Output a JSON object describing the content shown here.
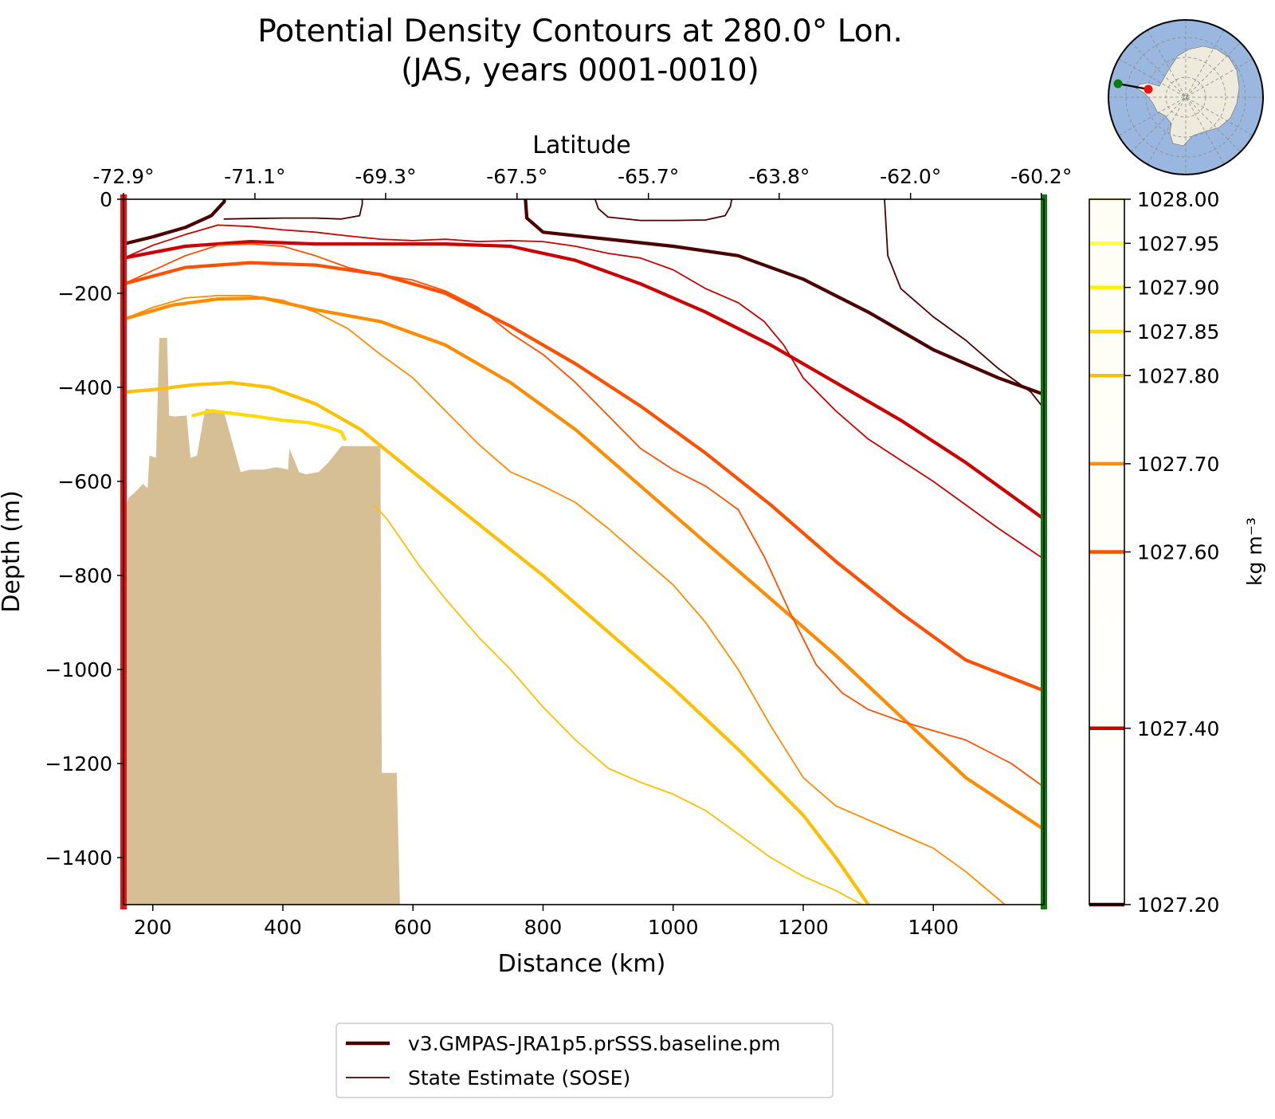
{
  "chart_data": {
    "type": "line",
    "title_line1": "Potential Density Contours at 280.0° Lon.",
    "title_line2": "(JAS, years 0001-0010)",
    "xlabel": "Distance (km)",
    "ylabel": "Depth (m)",
    "top_axis_label": "Latitude",
    "xlim": [
      155,
      1570
    ],
    "ylim": [
      -1500,
      0
    ],
    "x_ticks": [
      200,
      400,
      600,
      800,
      1000,
      1200,
      1400
    ],
    "x_tick_labels": [
      "200",
      "400",
      "600",
      "800",
      "1000",
      "1200",
      "1400"
    ],
    "y_ticks": [
      0,
      -200,
      -400,
      -600,
      -800,
      -1000,
      -1200,
      -1400
    ],
    "y_tick_labels": [
      "0",
      "−200",
      "−400",
      "−600",
      "−800",
      "−1000",
      "−1200",
      "−1400"
    ],
    "lat_ticks": [
      155,
      357,
      558,
      760,
      962,
      1163,
      1365,
      1566
    ],
    "lat_tick_labels": [
      "-72.9°",
      "-71.1°",
      "-69.3°",
      "-67.5°",
      "-65.7°",
      "-63.8°",
      "-62.0°",
      "-60.2°"
    ],
    "colorbar": {
      "label": "kg m⁻³",
      "min": 1027.2,
      "max": 1028.0,
      "levels": [
        1028.0,
        1027.95,
        1027.9,
        1027.85,
        1027.8,
        1027.7,
        1027.6,
        1027.4,
        1027.2
      ],
      "tick_labels": [
        "1028.00",
        "1027.95",
        "1027.90",
        "1027.85",
        "1027.80",
        "1027.70",
        "1027.60",
        "1027.40",
        "1027.20"
      ],
      "colors": [
        "#fffbd1",
        "#ffff33",
        "#fff000",
        "#ffd900",
        "#fcc000",
        "#ff8c00",
        "#ff5000",
        "#cc0000",
        "#4b0000"
      ]
    },
    "legend": {
      "placement": "bottom",
      "entries": [
        "v3.GMPAS-JRA1p5.prSSS.baseline.pm",
        "State Estimate (SOSE)"
      ]
    },
    "section_start_color": "#ee1111",
    "section_end_color": "#0a7a0a",
    "seafloor_color": "#d6bf95",
    "seafloor": {
      "x": [
        160,
        163,
        175,
        185,
        192,
        195,
        205,
        210,
        222,
        225,
        233,
        252,
        258,
        268,
        280,
        282,
        310,
        335,
        350,
        370,
        390,
        408,
        410,
        425,
        435,
        455,
        470,
        490,
        510,
        550,
        552,
        575,
        580
      ],
      "y": [
        -645,
        -635,
        -620,
        -605,
        -615,
        -545,
        -550,
        -295,
        -295,
        -460,
        -462,
        -460,
        -550,
        -545,
        -450,
        -445,
        -455,
        -580,
        -575,
        -575,
        -570,
        -575,
        -530,
        -580,
        -585,
        -580,
        -560,
        -525,
        -525,
        -525,
        -1220,
        -1220,
        -1500
      ]
    },
    "series": [
      {
        "source": "model",
        "level": 1027.2,
        "points": [
          [
            155,
            -95
          ],
          [
            200,
            -80
          ],
          [
            250,
            -60
          ],
          [
            290,
            -35
          ],
          [
            310,
            -5
          ],
          [
            310,
            0
          ]
        ]
      },
      {
        "source": "model",
        "level": 1027.2,
        "points": [
          [
            773,
            0
          ],
          [
            775,
            -40
          ],
          [
            800,
            -70
          ],
          [
            900,
            -85
          ],
          [
            1000,
            -100
          ],
          [
            1100,
            -120
          ],
          [
            1200,
            -170
          ],
          [
            1300,
            -240
          ],
          [
            1400,
            -320
          ],
          [
            1500,
            -380
          ],
          [
            1570,
            -415
          ]
        ]
      },
      {
        "source": "model",
        "level": 1027.4,
        "points": [
          [
            155,
            -125
          ],
          [
            250,
            -100
          ],
          [
            350,
            -90
          ],
          [
            450,
            -95
          ],
          [
            550,
            -95
          ],
          [
            650,
            -95
          ],
          [
            750,
            -100
          ],
          [
            850,
            -130
          ],
          [
            950,
            -180
          ],
          [
            1050,
            -240
          ],
          [
            1150,
            -310
          ],
          [
            1250,
            -390
          ],
          [
            1350,
            -470
          ],
          [
            1450,
            -560
          ],
          [
            1570,
            -680
          ]
        ]
      },
      {
        "source": "model",
        "level": 1027.6,
        "points": [
          [
            155,
            -180
          ],
          [
            250,
            -145
          ],
          [
            350,
            -135
          ],
          [
            450,
            -140
          ],
          [
            550,
            -160
          ],
          [
            650,
            -200
          ],
          [
            750,
            -270
          ],
          [
            850,
            -350
          ],
          [
            950,
            -440
          ],
          [
            1050,
            -540
          ],
          [
            1150,
            -650
          ],
          [
            1250,
            -770
          ],
          [
            1350,
            -880
          ],
          [
            1450,
            -980
          ],
          [
            1570,
            -1045
          ]
        ]
      },
      {
        "source": "model",
        "level": 1027.7,
        "points": [
          [
            155,
            -255
          ],
          [
            230,
            -225
          ],
          [
            300,
            -212
          ],
          [
            370,
            -210
          ],
          [
            450,
            -235
          ],
          [
            550,
            -260
          ],
          [
            650,
            -310
          ],
          [
            750,
            -390
          ],
          [
            850,
            -490
          ],
          [
            950,
            -610
          ],
          [
            1050,
            -730
          ],
          [
            1150,
            -850
          ],
          [
            1250,
            -970
          ],
          [
            1350,
            -1100
          ],
          [
            1450,
            -1230
          ],
          [
            1570,
            -1340
          ]
        ]
      },
      {
        "source": "model",
        "level": 1027.8,
        "points": [
          [
            155,
            -410
          ],
          [
            200,
            -405
          ],
          [
            260,
            -395
          ],
          [
            320,
            -390
          ],
          [
            380,
            -400
          ],
          [
            450,
            -435
          ],
          [
            520,
            -490
          ],
          [
            600,
            -580
          ],
          [
            700,
            -690
          ],
          [
            800,
            -800
          ],
          [
            900,
            -920
          ],
          [
            1000,
            -1040
          ],
          [
            1100,
            -1170
          ],
          [
            1200,
            -1310
          ],
          [
            1250,
            -1400
          ],
          [
            1300,
            -1500
          ]
        ]
      },
      {
        "source": "model",
        "level": 1027.85,
        "points": [
          [
            262,
            -460
          ],
          [
            290,
            -450
          ],
          [
            320,
            -455
          ],
          [
            360,
            -462
          ],
          [
            400,
            -470
          ],
          [
            440,
            -475
          ],
          [
            470,
            -485
          ],
          [
            490,
            -495
          ],
          [
            495,
            -510
          ]
        ]
      },
      {
        "source": "sose",
        "level": 1027.2,
        "points": [
          [
            310,
            -42
          ],
          [
            350,
            -41
          ],
          [
            400,
            -40
          ],
          [
            450,
            -40
          ],
          [
            490,
            -42
          ],
          [
            518,
            -35
          ],
          [
            522,
            -10
          ],
          [
            522,
            0
          ]
        ]
      },
      {
        "source": "sose",
        "level": 1027.2,
        "points": [
          [
            880,
            0
          ],
          [
            885,
            -20
          ],
          [
            900,
            -38
          ],
          [
            950,
            -45
          ],
          [
            1000,
            -45
          ],
          [
            1050,
            -44
          ],
          [
            1080,
            -35
          ],
          [
            1088,
            -15
          ],
          [
            1090,
            0
          ]
        ]
      },
      {
        "source": "sose",
        "level": 1027.2,
        "points": [
          [
            1325,
            0
          ],
          [
            1330,
            -120
          ],
          [
            1350,
            -190
          ],
          [
            1400,
            -250
          ],
          [
            1450,
            -300
          ],
          [
            1500,
            -360
          ],
          [
            1550,
            -410
          ],
          [
            1570,
            -445
          ]
        ]
      },
      {
        "source": "sose",
        "level": 1027.4,
        "points": [
          [
            155,
            -125
          ],
          [
            200,
            -98
          ],
          [
            250,
            -75
          ],
          [
            300,
            -55
          ],
          [
            350,
            -58
          ],
          [
            400,
            -65
          ],
          [
            450,
            -70
          ],
          [
            500,
            -78
          ],
          [
            550,
            -85
          ],
          [
            600,
            -88
          ],
          [
            650,
            -85
          ],
          [
            700,
            -90
          ],
          [
            750,
            -88
          ],
          [
            800,
            -90
          ],
          [
            850,
            -100
          ],
          [
            900,
            -115
          ],
          [
            950,
            -125
          ],
          [
            1000,
            -150
          ],
          [
            1050,
            -190
          ],
          [
            1100,
            -220
          ],
          [
            1140,
            -260
          ],
          [
            1170,
            -310
          ],
          [
            1200,
            -380
          ],
          [
            1250,
            -450
          ],
          [
            1300,
            -510
          ],
          [
            1350,
            -555
          ],
          [
            1400,
            -600
          ],
          [
            1450,
            -650
          ],
          [
            1500,
            -700
          ],
          [
            1570,
            -765
          ]
        ]
      },
      {
        "source": "sose",
        "level": 1027.6,
        "points": [
          [
            155,
            -180
          ],
          [
            250,
            -120
          ],
          [
            300,
            -98
          ],
          [
            350,
            -95
          ],
          [
            400,
            -100
          ],
          [
            450,
            -120
          ],
          [
            500,
            -145
          ],
          [
            550,
            -160
          ],
          [
            600,
            -172
          ],
          [
            650,
            -195
          ],
          [
            700,
            -230
          ],
          [
            750,
            -285
          ],
          [
            800,
            -330
          ],
          [
            850,
            -390
          ],
          [
            900,
            -460
          ],
          [
            950,
            -530
          ],
          [
            1000,
            -575
          ],
          [
            1050,
            -610
          ],
          [
            1100,
            -660
          ],
          [
            1140,
            -760
          ],
          [
            1180,
            -880
          ],
          [
            1220,
            -990
          ],
          [
            1260,
            -1050
          ],
          [
            1300,
            -1085
          ],
          [
            1350,
            -1110
          ],
          [
            1400,
            -1130
          ],
          [
            1450,
            -1150
          ],
          [
            1520,
            -1200
          ],
          [
            1570,
            -1250
          ]
        ]
      },
      {
        "source": "sose",
        "level": 1027.7,
        "points": [
          [
            155,
            -255
          ],
          [
            200,
            -230
          ],
          [
            250,
            -210
          ],
          [
            300,
            -205
          ],
          [
            350,
            -205
          ],
          [
            400,
            -215
          ],
          [
            450,
            -240
          ],
          [
            500,
            -275
          ],
          [
            550,
            -330
          ],
          [
            600,
            -380
          ],
          [
            650,
            -450
          ],
          [
            700,
            -520
          ],
          [
            750,
            -580
          ],
          [
            800,
            -610
          ],
          [
            850,
            -645
          ],
          [
            900,
            -700
          ],
          [
            950,
            -760
          ],
          [
            1000,
            -820
          ],
          [
            1050,
            -900
          ],
          [
            1100,
            -1000
          ],
          [
            1150,
            -1120
          ],
          [
            1200,
            -1230
          ],
          [
            1250,
            -1290
          ],
          [
            1300,
            -1320
          ],
          [
            1350,
            -1350
          ],
          [
            1400,
            -1380
          ],
          [
            1450,
            -1430
          ],
          [
            1510,
            -1500
          ]
        ]
      },
      {
        "source": "sose",
        "level": 1027.8,
        "points": [
          [
            540,
            -650
          ],
          [
            560,
            -680
          ],
          [
            580,
            -720
          ],
          [
            610,
            -780
          ],
          [
            650,
            -850
          ],
          [
            700,
            -930
          ],
          [
            750,
            -1000
          ],
          [
            800,
            -1080
          ],
          [
            850,
            -1150
          ],
          [
            900,
            -1210
          ],
          [
            950,
            -1240
          ],
          [
            1000,
            -1265
          ],
          [
            1050,
            -1300
          ],
          [
            1100,
            -1350
          ],
          [
            1150,
            -1400
          ],
          [
            1200,
            -1440
          ],
          [
            1250,
            -1470
          ],
          [
            1290,
            -1500
          ]
        ]
      }
    ]
  },
  "inset_map": {
    "ocean_color": "#9ab8df",
    "land_color": "#efebdc",
    "start_marker_color": "#ee1111",
    "end_marker_color": "#0a7a0a"
  }
}
